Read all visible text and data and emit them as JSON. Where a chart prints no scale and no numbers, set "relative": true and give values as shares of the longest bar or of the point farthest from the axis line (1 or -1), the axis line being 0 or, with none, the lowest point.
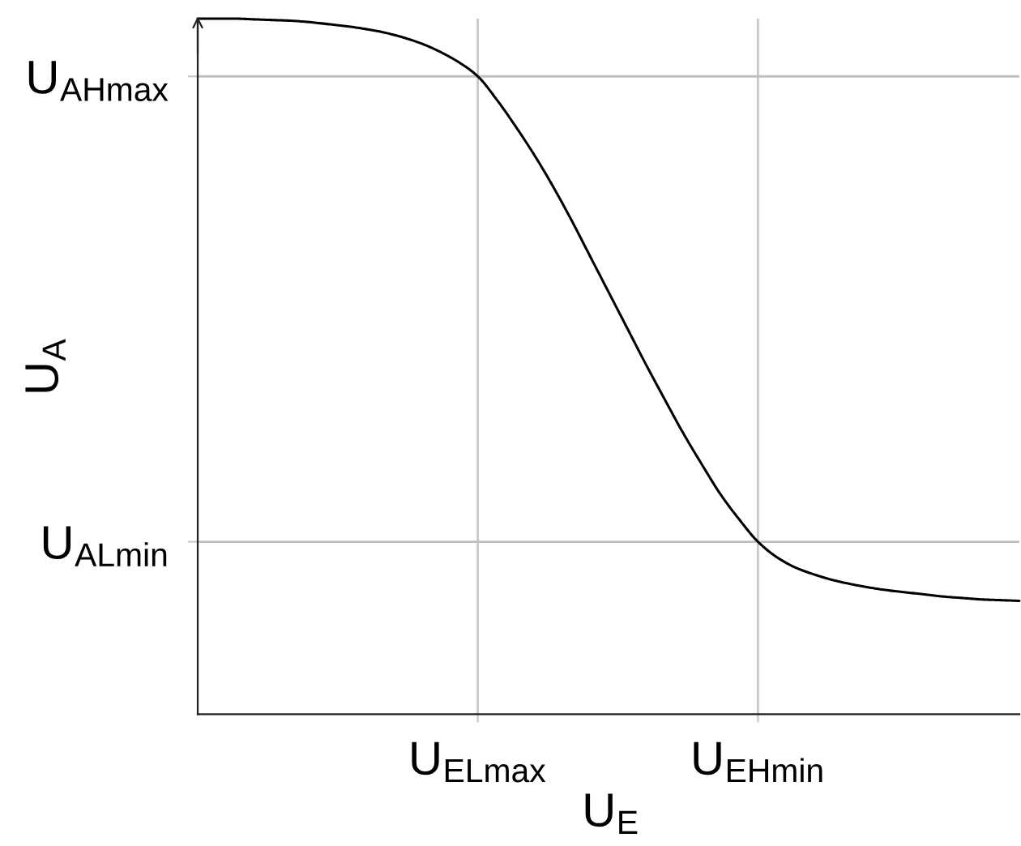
{
  "chart_data": {
    "type": "line",
    "xlabel": "U$_{E}$",
    "ylabel": "U$_{A}$",
    "relative": true,
    "categories": [
      null,
      null,
      null,
      null,
      null,
      null,
      null,
      null,
      null,
      null,
      null,
      null,
      null,
      null,
      null,
      "U$_{ELmax}$",
      null,
      null,
      null,
      null,
      null,
      null,
      null,
      null,
      null,
      null,
      null,
      null,
      null,
      null,
      "U$_{EHmin}$",
      null,
      null,
      null,
      null,
      null,
      null,
      null,
      null,
      null,
      null,
      null,
      null,
      null,
      null
    ],
    "series": [
      {
        "color": "#000000",
        "values": [
          1.0,
          1.0,
          1.0,
          0.999,
          0.998,
          0.997,
          0.995,
          0.992,
          0.989,
          0.985,
          0.98,
          0.973,
          0.964,
          0.952,
          0.937,
          0.917,
          0.884,
          0.846,
          0.805,
          0.76,
          0.711,
          0.659,
          0.607,
          0.555,
          0.503,
          0.453,
          0.404,
          0.359,
          0.316,
          0.28,
          0.248,
          0.226,
          0.211,
          0.201,
          0.193,
          0.187,
          0.182,
          0.178,
          0.175,
          0.172,
          0.169,
          0.167,
          0.165,
          0.164,
          0.163
        ]
      }
    ],
    "ref_lines": [
      {
        "axis": "y",
        "value": 0.917,
        "label": "U$_{AHmax}$",
        "color": "#bfbfbf"
      },
      {
        "axis": "y",
        "value": 0.248,
        "label": "U$_{ALmin}$",
        "color": "#bfbfbf"
      }
    ],
    "grid": "x",
    "marker": "none",
    "line_style": "solid"
  }
}
